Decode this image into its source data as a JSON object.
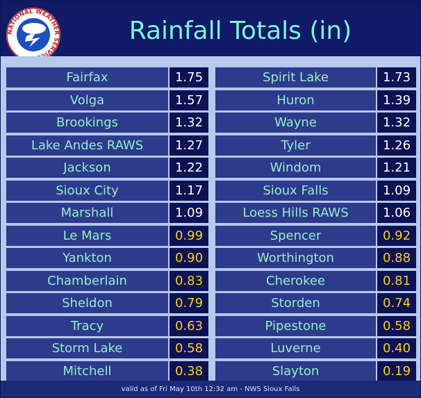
{
  "title": "Rainfall Totals (in)",
  "logo": {
    "icon": "nws-logo-icon",
    "text": "NATIONAL WEATHER SERVICE"
  },
  "colors": {
    "header_bg": "#101a66",
    "title": "#7cf5d9",
    "panel_bg": "#b7c9ec",
    "name_bg": "#2e3a8c",
    "name_text": "#8ff0c9",
    "value_bg": "#0c1253",
    "value_high_text": "#ffffff",
    "value_low_text": "#f8cf25"
  },
  "left_column": [
    {
      "name": "Fairfax",
      "value": "1.75"
    },
    {
      "name": "Volga",
      "value": "1.57"
    },
    {
      "name": "Brookings",
      "value": "1.32"
    },
    {
      "name": "Lake Andes RAWS",
      "value": "1.27"
    },
    {
      "name": "Jackson",
      "value": "1.22"
    },
    {
      "name": "Sioux City",
      "value": "1.17"
    },
    {
      "name": "Marshall",
      "value": "1.09"
    },
    {
      "name": "Le Mars",
      "value": "0.99"
    },
    {
      "name": "Yankton",
      "value": "0.90"
    },
    {
      "name": "Chamberlain",
      "value": "0.83"
    },
    {
      "name": "Sheldon",
      "value": "0.79"
    },
    {
      "name": "Tracy",
      "value": "0.63"
    },
    {
      "name": "Storm Lake",
      "value": "0.58"
    },
    {
      "name": "Mitchell",
      "value": "0.38"
    }
  ],
  "right_column": [
    {
      "name": "Spirit Lake",
      "value": "1.73"
    },
    {
      "name": "Huron",
      "value": "1.39"
    },
    {
      "name": "Wayne",
      "value": "1.32"
    },
    {
      "name": "Tyler",
      "value": "1.26"
    },
    {
      "name": "Windom",
      "value": "1.21"
    },
    {
      "name": "Sioux Falls",
      "value": "1.09"
    },
    {
      "name": "Loess Hills RAWS",
      "value": "1.06"
    },
    {
      "name": "Spencer",
      "value": "0.92"
    },
    {
      "name": "Worthington",
      "value": "0.88"
    },
    {
      "name": "Cherokee",
      "value": "0.81"
    },
    {
      "name": "Storden",
      "value": "0.74"
    },
    {
      "name": "Pipestone",
      "value": "0.58"
    },
    {
      "name": "Luverne",
      "value": "0.40"
    },
    {
      "name": "Slayton",
      "value": "0.19"
    }
  ],
  "footer": "valid as of Fri May 10th 12:32 am - NWS Sioux Falls"
}
